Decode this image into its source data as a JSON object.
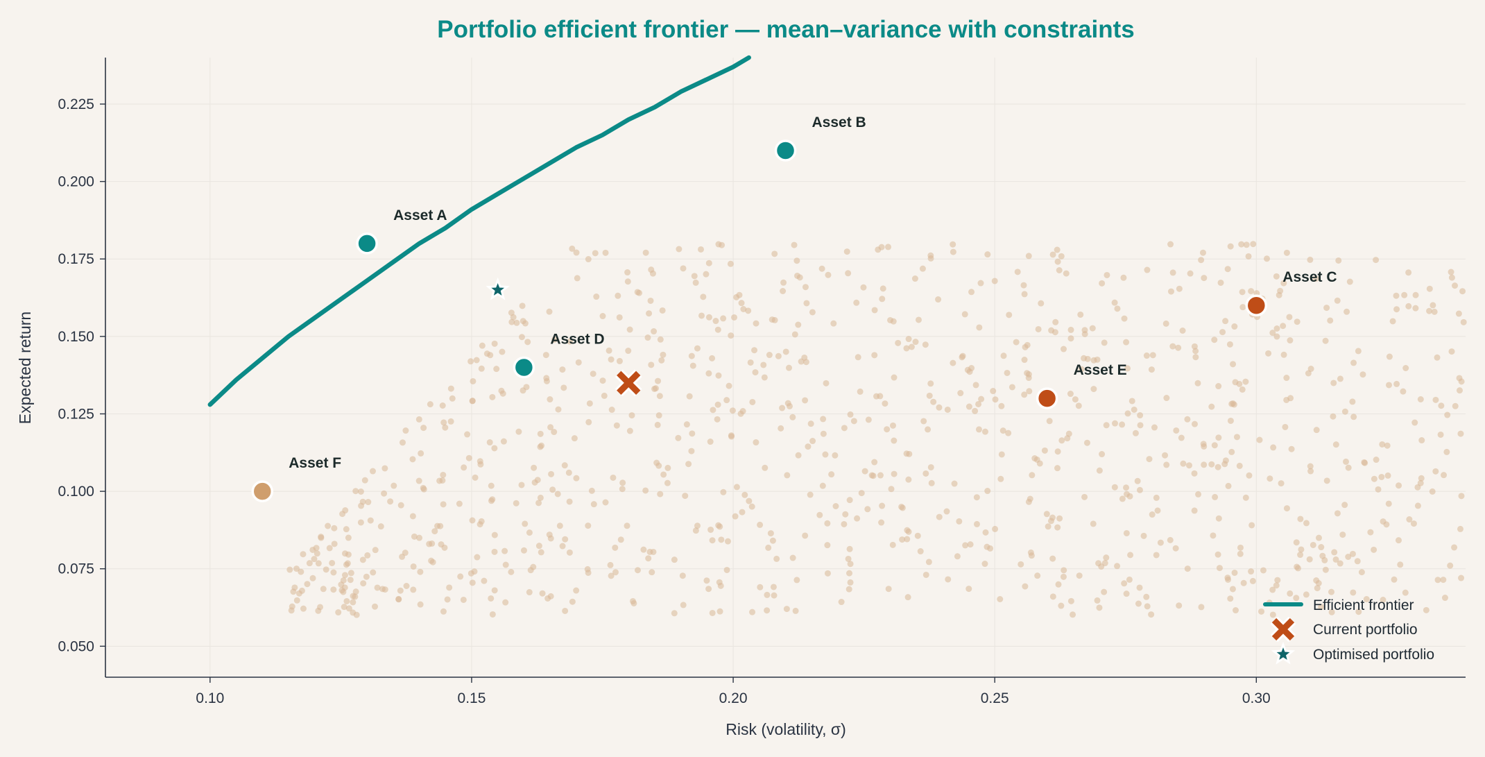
{
  "colors": {
    "background": "#f7f3ee",
    "title": "#0b8a87",
    "frontier": "#0b8a87",
    "axis": "#2a3342",
    "grid": "#e9e5df",
    "cloud": "#d9b898",
    "teal_asset": "#0b8a87",
    "orange_asset": "#bf4d17",
    "tan_asset": "#cf9e6d",
    "current": "#bf4d17",
    "optimised": "#0e6569"
  },
  "chart_data": {
    "type": "scatter",
    "title": "Portfolio efficient frontier — mean–variance with constraints",
    "xlabel": "Risk (volatility, σ)",
    "ylabel": "Expected return",
    "xlim": [
      0.08,
      0.34
    ],
    "ylim": [
      0.04,
      0.24
    ],
    "xticks": [
      0.1,
      0.15,
      0.2,
      0.25,
      0.3
    ],
    "xtick_labels": [
      "0.10",
      "0.15",
      "0.20",
      "0.25",
      "0.30"
    ],
    "yticks": [
      0.05,
      0.075,
      0.1,
      0.125,
      0.15,
      0.175,
      0.2,
      0.225
    ],
    "ytick_labels": [
      "0.050",
      "0.075",
      "0.100",
      "0.125",
      "0.150",
      "0.175",
      "0.200",
      "0.225"
    ],
    "grid": true,
    "legend_position": "bottom-right",
    "frontier": {
      "name": "Efficient frontier",
      "x": [
        0.1,
        0.105,
        0.11,
        0.115,
        0.12,
        0.125,
        0.13,
        0.135,
        0.14,
        0.145,
        0.15,
        0.155,
        0.16,
        0.165,
        0.17,
        0.175,
        0.18,
        0.185,
        0.19,
        0.195,
        0.2,
        0.203
      ],
      "y": [
        0.128,
        0.136,
        0.143,
        0.15,
        0.156,
        0.162,
        0.168,
        0.174,
        0.18,
        0.185,
        0.191,
        0.196,
        0.201,
        0.206,
        0.211,
        0.215,
        0.22,
        0.224,
        0.229,
        0.233,
        0.237,
        0.24
      ]
    },
    "assets": [
      {
        "label": "Asset A",
        "x": 0.13,
        "y": 0.18,
        "color_key": "teal_asset"
      },
      {
        "label": "Asset B",
        "x": 0.21,
        "y": 0.21,
        "color_key": "teal_asset"
      },
      {
        "label": "Asset C",
        "x": 0.3,
        "y": 0.16,
        "color_key": "orange_asset"
      },
      {
        "label": "Asset D",
        "x": 0.16,
        "y": 0.14,
        "color_key": "teal_asset"
      },
      {
        "label": "Asset E",
        "x": 0.26,
        "y": 0.13,
        "color_key": "orange_asset"
      },
      {
        "label": "Asset F",
        "x": 0.11,
        "y": 0.1,
        "color_key": "tan_asset"
      }
    ],
    "current_portfolio": {
      "name": "Current portfolio",
      "x": 0.18,
      "y": 0.135
    },
    "optimised_portfolio": {
      "name": "Optimised portfolio",
      "x": 0.155,
      "y": 0.165
    },
    "random_portfolios": {
      "count": 1000,
      "x_range": [
        0.115,
        0.34
      ],
      "y_range": [
        0.06,
        0.18
      ],
      "seed": 17
    },
    "legend": [
      "Efficient frontier",
      "Current portfolio",
      "Optimised portfolio"
    ]
  }
}
